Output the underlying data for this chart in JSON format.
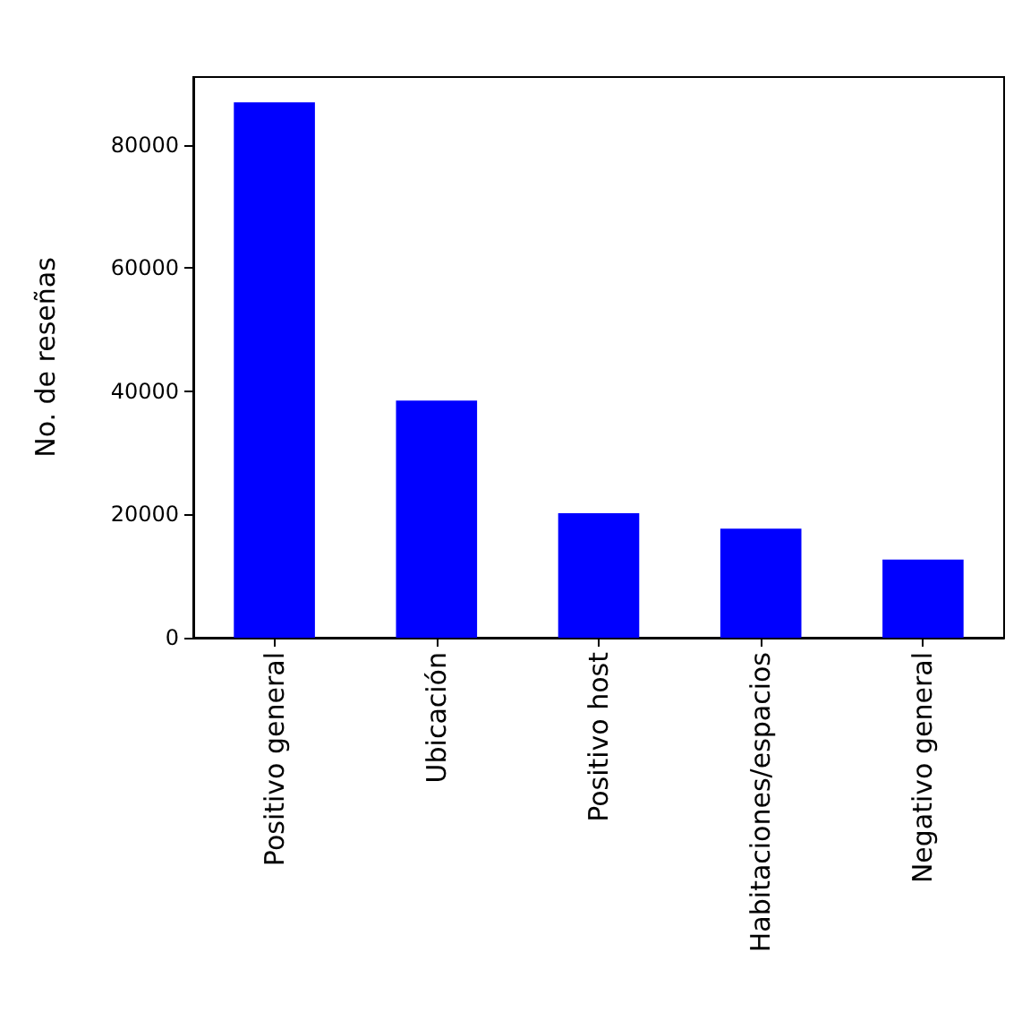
{
  "chart_data": {
    "type": "bar",
    "ylabel": "No. de reseñas",
    "categories": [
      "Positivo general",
      "Ubicación",
      "Positivo host",
      "Habitaciones/espacios",
      "Negativo general"
    ],
    "values": [
      86900,
      38500,
      20200,
      17700,
      12700
    ],
    "color": "#0000ff",
    "ylim": [
      0,
      91000
    ],
    "yticks": [
      0,
      20000,
      40000,
      60000,
      80000
    ],
    "grid": false
  }
}
